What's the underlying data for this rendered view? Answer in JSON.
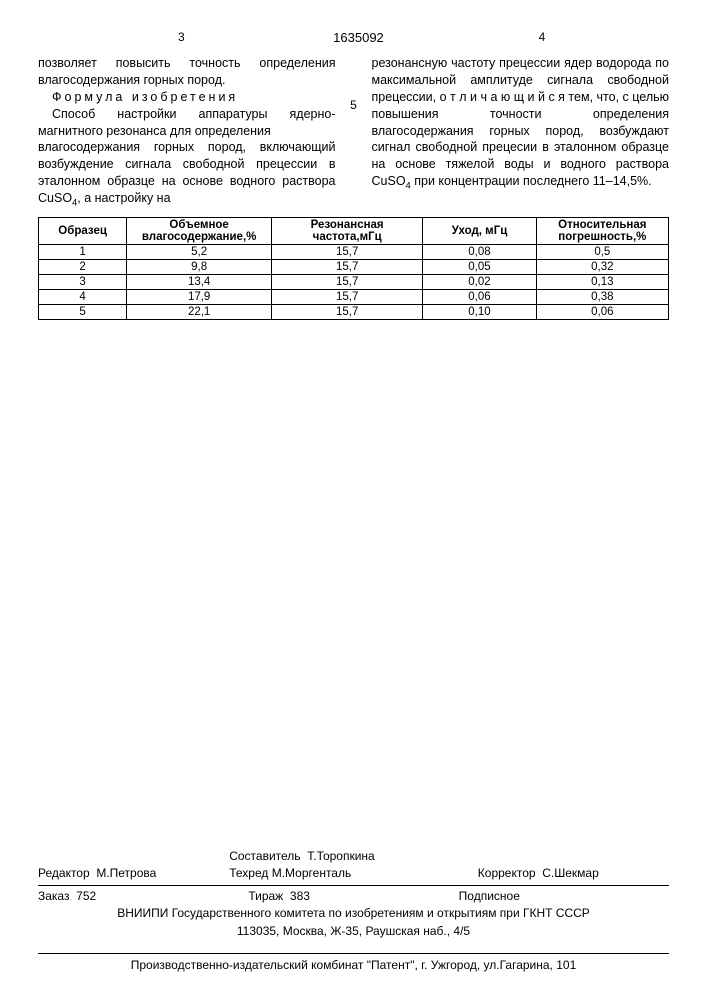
{
  "header": {
    "page_left": "3",
    "doc_number": "1635092",
    "page_right": "4",
    "line_marker": "5"
  },
  "body": {
    "col1_p1": "позволяет повысить точность определения влагосодержания горных пород.",
    "col1_formula": "Формула изобретения",
    "col1_p2_a": "Способ настройки аппаратуры ядерно-магнитного резонанса для определения",
    "col1_p2_b": "влагосодержания горных пород, включающий возбуждение сигнала свободной прецессии в эталонном образце на основе водного раствора CuSO",
    "col1_p2_sub": "4",
    "col1_p2_c": ", а настройку на",
    "col2_a": "резонансную частоту прецессии ядер водорода по максимальной амплитуде сигнала свободной прецессии, ",
    "col2_bold": "о т л и ч а ю щ и й с я",
    "col2_b": " тем, что, с целью повышения точности определения влагосодержания горных пород, возбуждают сигнал свободной прецесии в эталонном образце на основе тяжелой воды и водного раствора CuSO",
    "col2_sub": "4",
    "col2_c": " при концентрации последнего 11–14,5%."
  },
  "table": {
    "headers": [
      "Образец",
      "Объемное влагосодержание,%",
      "Резонансная частота,мГц",
      "Уход, мГц",
      "Относительная погрешность,%"
    ],
    "rows": [
      [
        "1",
        "5,2",
        "15,7",
        "0,08",
        "0,5"
      ],
      [
        "2",
        "9,8",
        "15,7",
        "0,05",
        "0,32"
      ],
      [
        "3",
        "13,4",
        "15,7",
        "0,02",
        "0,13"
      ],
      [
        "4",
        "17,9",
        "15,7",
        "0,06",
        "0,38"
      ],
      [
        "5",
        "22,1",
        "15,7",
        "0,10",
        "0,06"
      ]
    ],
    "col_widths": [
      "14%",
      "23%",
      "24%",
      "18%",
      "21%"
    ]
  },
  "footer": {
    "editor_label": "Редактор",
    "editor_name": "М.Петрова",
    "composer_label": "Составитель",
    "composer_name": "Т.Торопкина",
    "tech_label": "Техред",
    "tech_name": "М.Моргенталь",
    "corrector_label": "Корректор",
    "corrector_name": "С.Шекмар",
    "order_label": "Заказ",
    "order_value": "752",
    "print_run_label": "Тираж",
    "print_run_value": "383",
    "subscription": "Подписное",
    "org1": "ВНИИПИ Государственного комитета по изобретениям и открытиям при ГКНТ СССР",
    "org1_addr": "113035, Москва, Ж-35, Раушская наб., 4/5",
    "imprint": "Производственно-издательский комбинат \"Патент\", г. Ужгород, ул.Гагарина, 101"
  }
}
